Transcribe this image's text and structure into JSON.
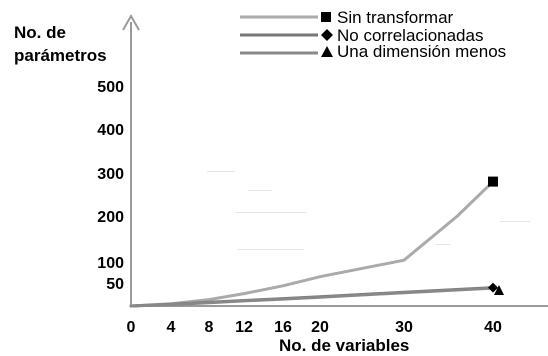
{
  "chart_data": {
    "type": "line",
    "ylabel_line1": "No. de",
    "ylabel_line2": "parámetros",
    "xlabel": "No. de variables",
    "x_ticks": [
      "0",
      "4",
      "8",
      "12",
      "16",
      "20",
      "30",
      "40"
    ],
    "y_ticks": [
      "50",
      "100",
      "200",
      "300",
      "400",
      "500"
    ],
    "series": [
      {
        "name": "Sin transformar",
        "color": "#aaaaaa",
        "marker": "square",
        "points": [
          [
            0,
            0
          ],
          [
            4,
            5
          ],
          [
            8,
            14
          ],
          [
            12,
            27
          ],
          [
            16,
            44
          ],
          [
            20,
            65
          ],
          [
            30,
            104
          ],
          [
            36,
            200
          ],
          [
            40,
            280
          ]
        ]
      },
      {
        "name": "No correlacionadas",
        "color": "#777777",
        "marker": "diamond",
        "points": [
          [
            0,
            0
          ],
          [
            4,
            4
          ],
          [
            8,
            8
          ],
          [
            12,
            12
          ],
          [
            16,
            16
          ],
          [
            20,
            20
          ],
          [
            30,
            30
          ],
          [
            40,
            40
          ]
        ]
      },
      {
        "name": "Una dimensión menos",
        "color": "#888888",
        "marker": "triangle",
        "points": [
          [
            0,
            0
          ],
          [
            4,
            3
          ],
          [
            8,
            7
          ],
          [
            12,
            11
          ],
          [
            16,
            15
          ],
          [
            20,
            19
          ],
          [
            30,
            29
          ],
          [
            40,
            39
          ]
        ]
      }
    ]
  }
}
